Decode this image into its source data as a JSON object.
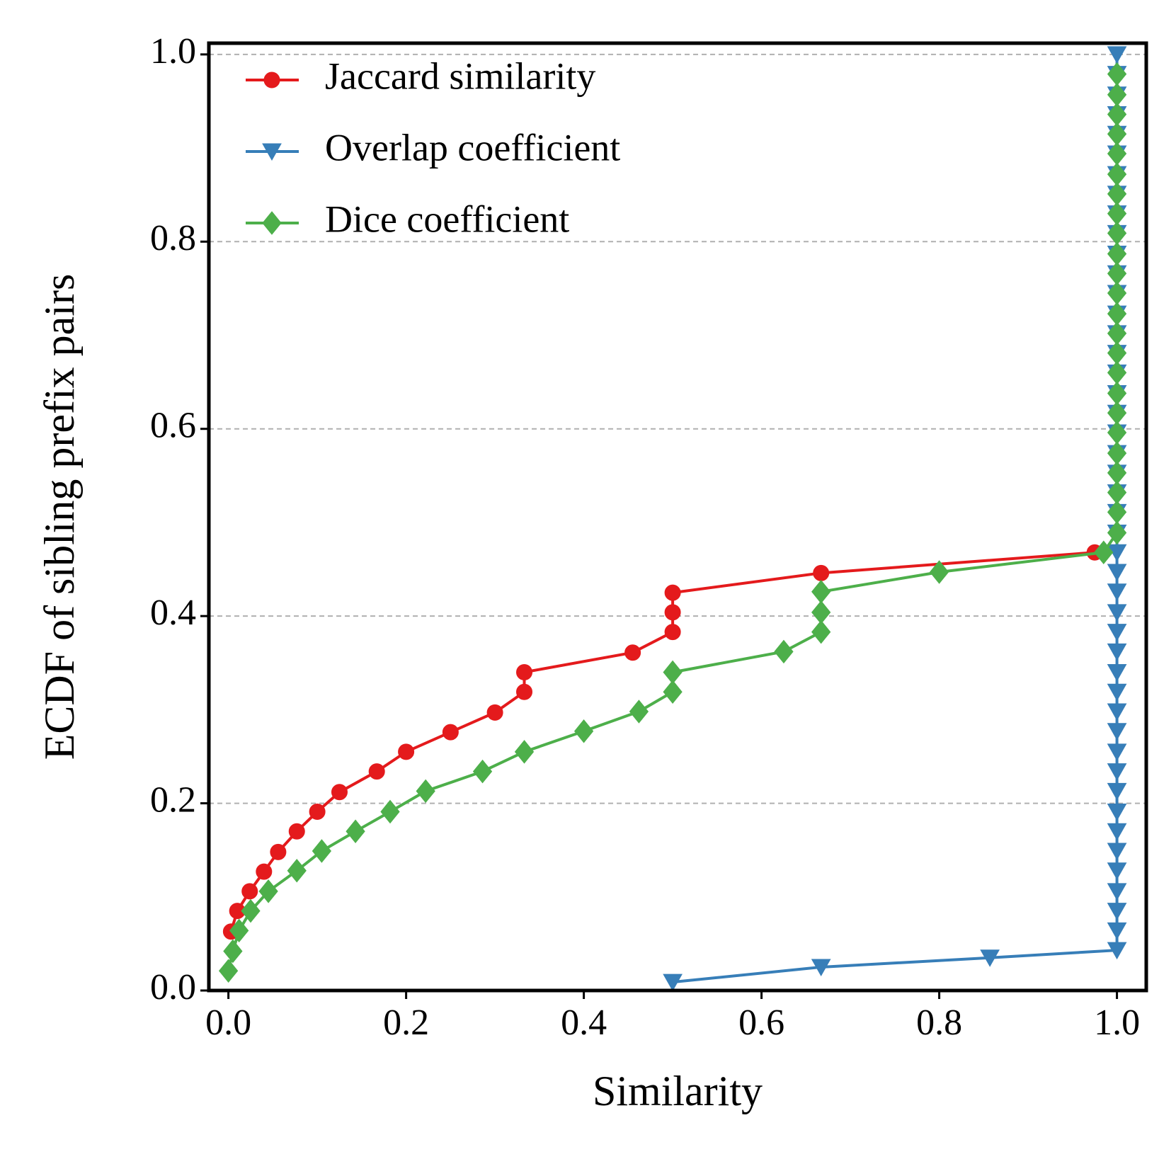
{
  "chart_data": {
    "type": "line",
    "xlabel": "Similarity",
    "ylabel": "ECDF of sibling prefix pairs",
    "xlim": [
      -0.022,
      1.033
    ],
    "ylim": [
      0,
      1.012
    ],
    "xticks": [
      {
        "value": 0,
        "label": "0.0"
      },
      {
        "value": 0.2,
        "label": "0.2"
      },
      {
        "value": 0.4,
        "label": "0.4"
      },
      {
        "value": 0.6,
        "label": "0.6"
      },
      {
        "value": 0.8,
        "label": "0.8"
      },
      {
        "value": 1,
        "label": "1.0"
      }
    ],
    "yticks": [
      {
        "value": 0,
        "label": "0.0"
      },
      {
        "value": 0.2,
        "label": "0.2"
      },
      {
        "value": 0.4,
        "label": "0.4"
      },
      {
        "value": 0.6,
        "label": "0.6"
      },
      {
        "value": 0.8,
        "label": "0.8"
      },
      {
        "value": 1,
        "label": "1.0"
      }
    ],
    "grid": true,
    "legend": "upper left",
    "series": [
      {
        "name": "Jaccard similarity",
        "color": "#e41a1c",
        "marker": "circle",
        "x": [
          0.003,
          0.01,
          0.024,
          0.04,
          0.056,
          0.077,
          0.1,
          0.125,
          0.167,
          0.2,
          0.25,
          0.3,
          0.333,
          0.333,
          0.455,
          0.5,
          0.5,
          0.5,
          0.667,
          0.975
        ],
        "y": [
          0.063,
          0.085,
          0.106,
          0.127,
          0.148,
          0.17,
          0.191,
          0.212,
          0.234,
          0.255,
          0.276,
          0.297,
          0.319,
          0.34,
          0.361,
          0.383,
          0.404,
          0.425,
          0.446,
          0.468
        ]
      },
      {
        "name": "Overlap coefficient",
        "color": "#377eb8",
        "marker": "triangle-down",
        "x": [
          0.5,
          0.667,
          0.857,
          1,
          1,
          1,
          1,
          1,
          1,
          1,
          1,
          1,
          1,
          1,
          1,
          1,
          1,
          1,
          1,
          1,
          1,
          1,
          1,
          1,
          1,
          1,
          1,
          1,
          1,
          1,
          1,
          1,
          1,
          1,
          1,
          1,
          1,
          1,
          1,
          1,
          1,
          1,
          1,
          1,
          1,
          1,
          1,
          1,
          1
        ],
        "y": [
          0.009,
          0.025,
          0.035,
          0.043,
          0.064,
          0.085,
          0.106,
          0.128,
          0.149,
          0.17,
          0.191,
          0.213,
          0.234,
          0.255,
          0.277,
          0.298,
          0.319,
          0.34,
          0.362,
          0.383,
          0.404,
          0.426,
          0.447,
          0.468,
          0.489,
          0.511,
          0.532,
          0.553,
          0.574,
          0.596,
          0.617,
          0.638,
          0.66,
          0.681,
          0.702,
          0.723,
          0.745,
          0.766,
          0.787,
          0.809,
          0.83,
          0.851,
          0.872,
          0.894,
          0.915,
          0.936,
          0.957,
          0.979,
          1.0
        ]
      },
      {
        "name": "Dice coefficient",
        "color": "#4daf4a",
        "marker": "diamond",
        "x": [
          0,
          0.005,
          0.012,
          0.025,
          0.045,
          0.077,
          0.105,
          0.143,
          0.182,
          0.222,
          0.286,
          0.333,
          0.4,
          0.462,
          0.5,
          0.5,
          0.625,
          0.667,
          0.667,
          0.667,
          0.8,
          0.985,
          1,
          1,
          1,
          1,
          1,
          1,
          1,
          1,
          1,
          1,
          1,
          1,
          1,
          1,
          1,
          1,
          1,
          1,
          1,
          1,
          1,
          1,
          1,
          1
        ],
        "y": [
          0.021,
          0.042,
          0.064,
          0.085,
          0.106,
          0.128,
          0.149,
          0.17,
          0.191,
          0.213,
          0.234,
          0.255,
          0.277,
          0.298,
          0.319,
          0.34,
          0.362,
          0.383,
          0.404,
          0.426,
          0.447,
          0.468,
          0.489,
          0.511,
          0.532,
          0.553,
          0.574,
          0.596,
          0.617,
          0.638,
          0.66,
          0.681,
          0.702,
          0.723,
          0.745,
          0.766,
          0.787,
          0.809,
          0.83,
          0.851,
          0.872,
          0.894,
          0.915,
          0.936,
          0.957,
          0.979
        ]
      }
    ]
  }
}
